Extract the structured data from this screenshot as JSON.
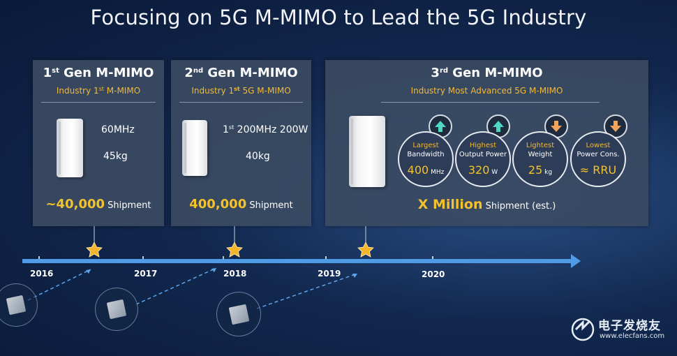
{
  "title": "Focusing on 5G M-MIMO to Lead the 5G Industry",
  "gen1": {
    "title_num": "1",
    "title_sup": "st",
    "title_rest": " Gen M-MIMO",
    "subtitle_a": "Industry 1",
    "subtitle_sup": "st",
    "subtitle_b": " M-MIMO",
    "spec1": "60MHz",
    "spec2": "45kg",
    "shipment_value": "~40,000",
    "shipment_label": " Shipment"
  },
  "gen2": {
    "title_num": "2",
    "title_sup": "nd",
    "title_rest": " Gen M-MIMO",
    "subtitle_a": "Industry 1",
    "subtitle_sup": "st",
    "subtitle_b": " 5G M-MIMO",
    "spec1_a": "1",
    "spec1_sup": "st",
    "spec1_b": " 200MHz 200W",
    "spec2": "40kg",
    "shipment_value": "400,000",
    "shipment_label": " Shipment"
  },
  "gen3": {
    "title_num": "3",
    "title_sup": "rd",
    "title_rest": " Gen M-MIMO",
    "subtitle": "Industry Most Advanced 5G M-MIMO",
    "metrics": [
      {
        "line1": "Largest",
        "line2": "Bandwidth",
        "value": "400",
        "unit": " MHz",
        "trend": "up"
      },
      {
        "line1": "Highest",
        "line2": "Output Power",
        "value": "320",
        "unit": " W",
        "trend": "up"
      },
      {
        "line1": "Lightest",
        "line2": "Weight",
        "value": "25",
        "unit": " kg",
        "trend": "down"
      },
      {
        "line1": "Lowest",
        "line2": "Power Cons.",
        "value": "≈ RRU",
        "unit": "",
        "trend": "down"
      }
    ],
    "shipment_value": "X Million",
    "shipment_label": " Shipment",
    "shipment_note": " (est.)"
  },
  "timeline": {
    "years": [
      "2016",
      "2017",
      "2018",
      "2019",
      "2020"
    ]
  },
  "watermark": {
    "name": "电子发烧友",
    "url": "www.elecfans.com"
  },
  "colors": {
    "accent_yellow": "#f4c22c",
    "timeline_blue": "#4f9be6",
    "arrow_up": "#4ed8c4",
    "arrow_down": "#f4a35a"
  }
}
